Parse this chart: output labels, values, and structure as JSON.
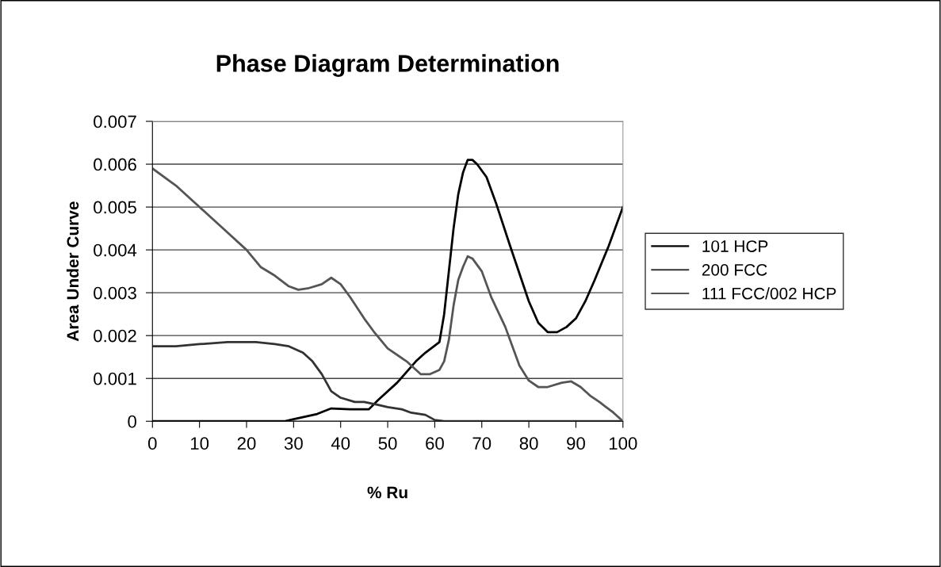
{
  "chart_data": {
    "type": "line",
    "title": "Phase Diagram Determination",
    "xlabel": "% Ru",
    "ylabel": "Area Under Curve",
    "xlim": [
      0,
      100
    ],
    "xticks": [
      0,
      10,
      20,
      30,
      40,
      50,
      60,
      70,
      80,
      90,
      100
    ],
    "ylim": [
      0,
      0.007
    ],
    "yticks": [
      0,
      0.001,
      0.002,
      0.003,
      0.004,
      0.005,
      0.006,
      0.007
    ],
    "grid": "y",
    "legend": "right",
    "marker": "none",
    "line_style": "solid",
    "series": [
      {
        "name": "101 HCP",
        "color": "#000000",
        "x": [
          0,
          10,
          20,
          28,
          30,
          35,
          38,
          42,
          46,
          48,
          52,
          56,
          58,
          61,
          62,
          64,
          65,
          66,
          67,
          68,
          69,
          71,
          73,
          76,
          80,
          82,
          84,
          86,
          88,
          90,
          92,
          94,
          97,
          100
        ],
        "values": [
          0,
          0,
          0,
          0,
          5e-05,
          0.00017,
          0.0003,
          0.00028,
          0.00028,
          0.0005,
          0.0009,
          0.0014,
          0.0016,
          0.00185,
          0.0025,
          0.0045,
          0.0053,
          0.0058,
          0.0061,
          0.0061,
          0.006,
          0.0057,
          0.0051,
          0.0041,
          0.0028,
          0.0023,
          0.00208,
          0.00208,
          0.0022,
          0.0024,
          0.0028,
          0.0033,
          0.0041,
          0.005
        ]
      },
      {
        "name": "200 FCC",
        "color": "#333333",
        "x": [
          0,
          5,
          10,
          16,
          22,
          26,
          29,
          32,
          34,
          36,
          38,
          40,
          43,
          45,
          48,
          50,
          53,
          55,
          58,
          60,
          62,
          80,
          100
        ],
        "values": [
          0.00175,
          0.00175,
          0.0018,
          0.00185,
          0.00185,
          0.0018,
          0.00175,
          0.0016,
          0.0014,
          0.0011,
          0.0007,
          0.00055,
          0.00045,
          0.00045,
          0.00038,
          0.00033,
          0.00028,
          0.0002,
          0.00015,
          3e-05,
          0,
          0,
          0
        ]
      },
      {
        "name": "111 FCC/002 HCP",
        "color": "#555555",
        "x": [
          0,
          5,
          10,
          15,
          20,
          23,
          26,
          29,
          31,
          33,
          36,
          38,
          40,
          42,
          45,
          47,
          50,
          54,
          57,
          59,
          61,
          62,
          63,
          64,
          65,
          66,
          67,
          68,
          70,
          72,
          75,
          78,
          80,
          82,
          84,
          87,
          89,
          91,
          93,
          95,
          98,
          100
        ],
        "values": [
          0.0059,
          0.0055,
          0.005,
          0.0045,
          0.004,
          0.0036,
          0.0034,
          0.00315,
          0.00307,
          0.0031,
          0.0032,
          0.00335,
          0.0032,
          0.0029,
          0.0024,
          0.0021,
          0.0017,
          0.0014,
          0.0011,
          0.0011,
          0.0012,
          0.0014,
          0.0019,
          0.0027,
          0.0033,
          0.0036,
          0.00385,
          0.0038,
          0.0035,
          0.0029,
          0.0022,
          0.0013,
          0.00095,
          0.0008,
          0.0008,
          0.0009,
          0.00093,
          0.0008,
          0.0006,
          0.00045,
          0.0002,
          0
        ]
      }
    ]
  }
}
